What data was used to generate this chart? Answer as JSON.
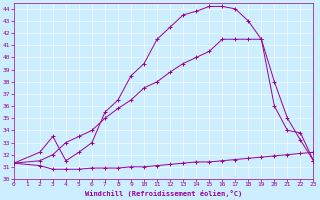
{
  "xlabel": "Windchill (Refroidissement éolien,°C)",
  "bg_color": "#cceeff",
  "line_color": "#990099",
  "xlim": [
    0,
    23
  ],
  "ylim": [
    30,
    44.5
  ],
  "yticks": [
    30,
    31,
    32,
    33,
    34,
    35,
    36,
    37,
    38,
    39,
    40,
    41,
    42,
    43,
    44
  ],
  "xticks": [
    0,
    1,
    2,
    3,
    4,
    5,
    6,
    7,
    8,
    9,
    10,
    11,
    12,
    13,
    14,
    15,
    16,
    17,
    18,
    19,
    20,
    21,
    22,
    23
  ],
  "line1_x": [
    0,
    2,
    3,
    4,
    5,
    6,
    7,
    8,
    9,
    10,
    11,
    12,
    13,
    14,
    15,
    16,
    17,
    18,
    19,
    20,
    21,
    22,
    23
  ],
  "line1_y": [
    31.3,
    31.1,
    30.8,
    30.8,
    30.8,
    30.9,
    30.9,
    30.9,
    31.0,
    31.0,
    31.1,
    31.2,
    31.3,
    31.4,
    31.4,
    31.5,
    31.6,
    31.7,
    31.8,
    31.9,
    32.0,
    32.1,
    32.2
  ],
  "line2_x": [
    0,
    2,
    3,
    4,
    5,
    6,
    7,
    8,
    9,
    10,
    11,
    12,
    13,
    14,
    15,
    16,
    17,
    18,
    19,
    20,
    21,
    22,
    23
  ],
  "line2_y": [
    31.3,
    32.2,
    33.5,
    31.5,
    32.2,
    33.0,
    35.5,
    36.5,
    38.5,
    39.5,
    41.5,
    42.5,
    43.5,
    43.8,
    44.2,
    44.2,
    44.0,
    43.0,
    41.5,
    36.0,
    34.0,
    33.8,
    31.5
  ],
  "line3_x": [
    0,
    2,
    3,
    4,
    5,
    6,
    7,
    8,
    9,
    10,
    11,
    12,
    13,
    14,
    15,
    16,
    17,
    18,
    19,
    20,
    21,
    22,
    23
  ],
  "line3_y": [
    31.3,
    31.5,
    32.0,
    33.0,
    33.5,
    34.0,
    35.0,
    35.8,
    36.5,
    37.5,
    38.0,
    38.8,
    39.5,
    40.0,
    40.5,
    41.5,
    41.5,
    41.5,
    41.5,
    38.0,
    35.0,
    33.2,
    31.5
  ]
}
